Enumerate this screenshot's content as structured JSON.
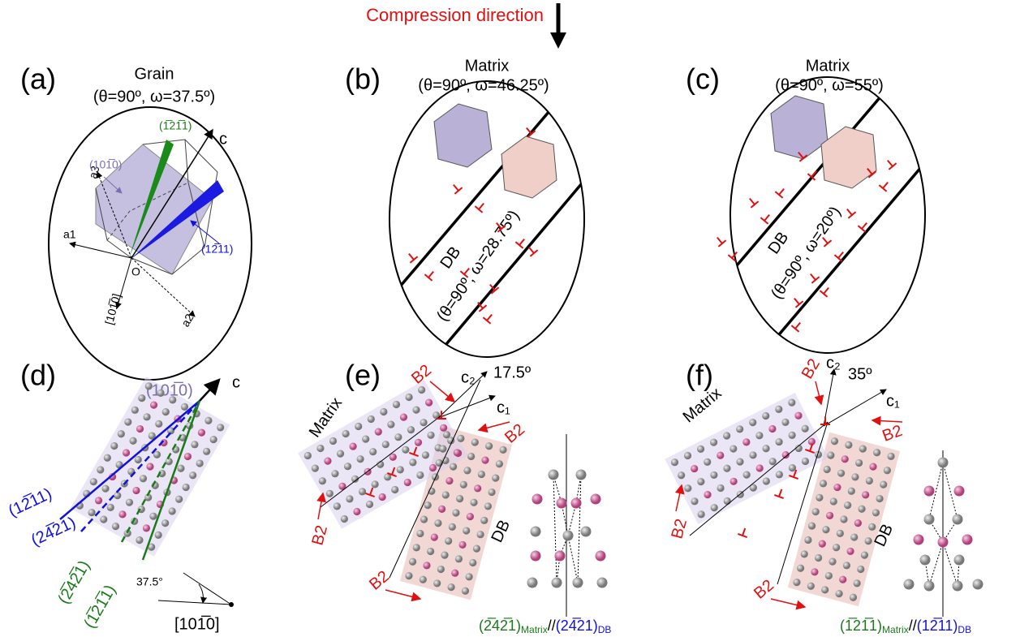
{
  "header": {
    "compression": "Compression direction"
  },
  "panel_a": {
    "label": "(a)",
    "title": "Grain",
    "angles": "(θ=90º, ω=37.5º)",
    "plane_prism": "(101̅0)",
    "plane_green": "(1̅21̅1)",
    "axis_c": "c",
    "axis_a3": "a3",
    "axis_a1": "a1",
    "origin": "O",
    "direction": "[101̅0]",
    "axis_a2": "a2",
    "plane_blue": "(12̅11)"
  },
  "panel_b": {
    "label": "(b)",
    "title": "Matrix",
    "angles": "(θ=90º, ω=46.25º)",
    "db": "DB",
    "db_angles": "(θ=90º, ω=28.75º)"
  },
  "panel_c": {
    "label": "(c)",
    "title": "Matrix",
    "angles": "(θ=90º, ω=55º)",
    "db": "DB",
    "db_angles": "(θ=90º, ω=20º)"
  },
  "panel_d": {
    "label": "(d)",
    "plane": "(101̅0)",
    "axis_c": "c",
    "traces": [
      "(12̅11)",
      "(24̅21)",
      "(2̅42̅1)",
      "(1̅21̅1)"
    ],
    "angle": "37.5°",
    "direction": "[101̅0]"
  },
  "panel_e": {
    "label": "(e)",
    "b2": [
      "B2",
      "B2",
      "B2",
      "B2"
    ],
    "c2": "c₂",
    "angle": "17.5º",
    "c1": "c₁",
    "matrix": "Matrix",
    "db": "DB",
    "relation": {
      "plane_matrix": "(2̅42̅1)",
      "sub_matrix": "Matrix",
      "parallel": "//",
      "plane_db": "(24̅21)",
      "sub_db": "DB"
    }
  },
  "panel_f": {
    "label": "(f)",
    "b2": [
      "B2",
      "B2",
      "B2"
    ],
    "c2": "c₂",
    "angle": "35º",
    "c1": "c₁",
    "matrix": "Matrix",
    "db": "DB",
    "relation": {
      "plane_matrix": "(1̅21̅1)",
      "sub_matrix": "Matrix",
      "parallel": "//",
      "plane_db": "(12̅11)",
      "sub_db": "DB"
    }
  }
}
